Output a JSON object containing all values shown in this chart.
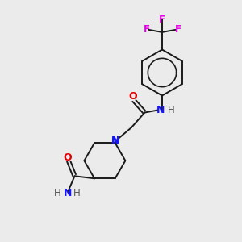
{
  "background_color": "#ebebeb",
  "bond_color": "#1a1a1a",
  "N_color": "#1414ff",
  "O_color": "#e00000",
  "F_color": "#e800e8",
  "font_size": 8.5,
  "figsize": [
    3.0,
    3.0
  ],
  "dpi": 100,
  "xlim": [
    0,
    10
  ],
  "ylim": [
    0,
    10
  ]
}
